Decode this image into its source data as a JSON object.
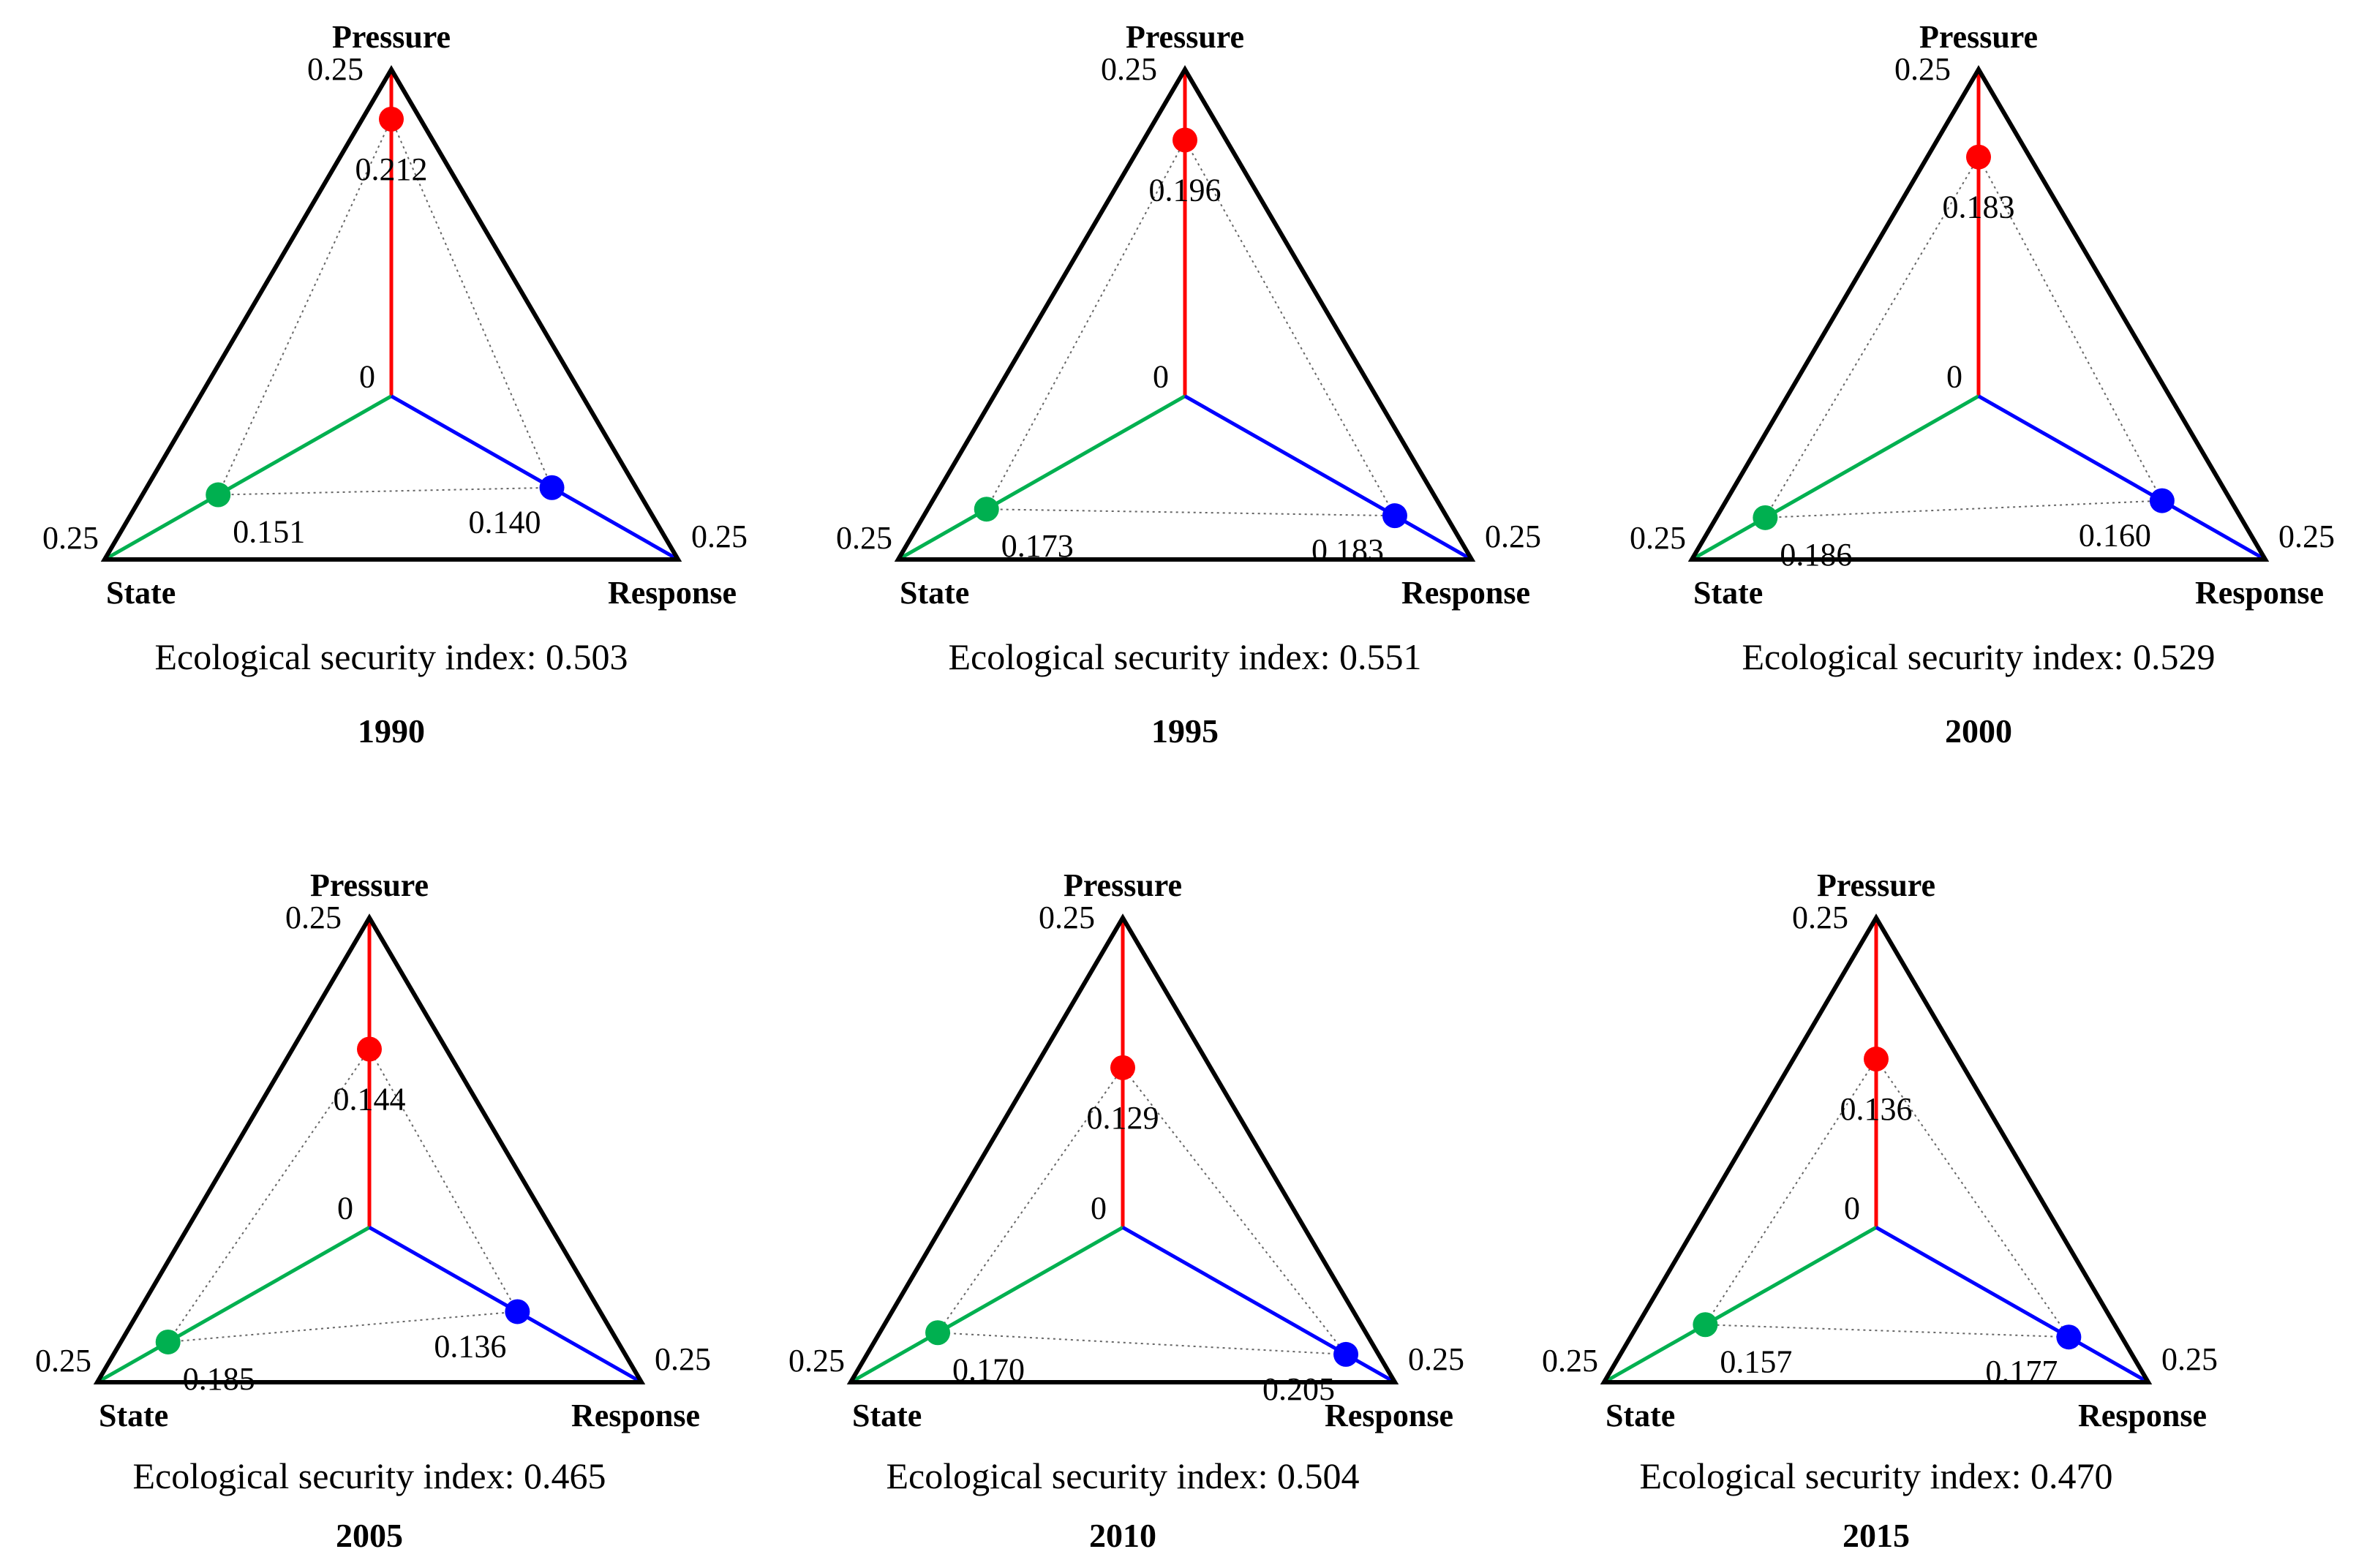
{
  "chart_data": [
    {
      "type": "radar-triangle",
      "year": "1990",
      "axes": [
        "Pressure",
        "State",
        "Response"
      ],
      "axis_max": "0.25",
      "axis_min": "0",
      "axis_max_value": 0.25,
      "values": {
        "pressure": 0.212,
        "state": 0.151,
        "response": 0.14
      },
      "value_labels": {
        "pressure": "0.212",
        "state": "0.151",
        "response": "0.140"
      },
      "index_text": "Ecological security index: 0.503",
      "colors": {
        "pressure": "#ff0000",
        "state": "#00b050",
        "response": "#0000ff",
        "frame": "#000000",
        "guide": "#666666"
      }
    },
    {
      "type": "radar-triangle",
      "year": "1995",
      "axes": [
        "Pressure",
        "State",
        "Response"
      ],
      "axis_max": "0.25",
      "axis_min": "0",
      "axis_max_value": 0.25,
      "values": {
        "pressure": 0.196,
        "state": 0.173,
        "response": 0.183
      },
      "value_labels": {
        "pressure": "0.196",
        "state": "0.173",
        "response": "0.183"
      },
      "index_text": "Ecological security index: 0.551",
      "colors": {
        "pressure": "#ff0000",
        "state": "#00b050",
        "response": "#0000ff",
        "frame": "#000000",
        "guide": "#666666"
      }
    },
    {
      "type": "radar-triangle",
      "year": "2000",
      "axes": [
        "Pressure",
        "State",
        "Response"
      ],
      "axis_max": "0.25",
      "axis_min": "0",
      "axis_max_value": 0.25,
      "values": {
        "pressure": 0.183,
        "state": 0.186,
        "response": 0.16
      },
      "value_labels": {
        "pressure": "0.183",
        "state": "0.186",
        "response": "0.160"
      },
      "index_text": "Ecological security index: 0.529",
      "colors": {
        "pressure": "#ff0000",
        "state": "#00b050",
        "response": "#0000ff",
        "frame": "#000000",
        "guide": "#666666"
      }
    },
    {
      "type": "radar-triangle",
      "year": "2005",
      "axes": [
        "Pressure",
        "State",
        "Response"
      ],
      "axis_max": "0.25",
      "axis_min": "0",
      "axis_max_value": 0.25,
      "values": {
        "pressure": 0.144,
        "state": 0.185,
        "response": 0.136
      },
      "value_labels": {
        "pressure": "0.144",
        "state": "0.185",
        "response": "0.136"
      },
      "index_text": "Ecological security index: 0.465",
      "colors": {
        "pressure": "#ff0000",
        "state": "#00b050",
        "response": "#0000ff",
        "frame": "#000000",
        "guide": "#666666"
      }
    },
    {
      "type": "radar-triangle",
      "year": "2010",
      "axes": [
        "Pressure",
        "State",
        "Response"
      ],
      "axis_max": "0.25",
      "axis_min": "0",
      "axis_max_value": 0.25,
      "values": {
        "pressure": 0.129,
        "state": 0.17,
        "response": 0.205
      },
      "value_labels": {
        "pressure": "0.129",
        "state": "0.170",
        "response": "0.205"
      },
      "index_text": "Ecological security index: 0.504",
      "colors": {
        "pressure": "#ff0000",
        "state": "#00b050",
        "response": "#0000ff",
        "frame": "#000000",
        "guide": "#666666"
      }
    },
    {
      "type": "radar-triangle",
      "year": "2015",
      "axes": [
        "Pressure",
        "State",
        "Response"
      ],
      "axis_max": "0.25",
      "axis_min": "0",
      "axis_max_value": 0.25,
      "values": {
        "pressure": 0.136,
        "state": 0.157,
        "response": 0.177
      },
      "value_labels": {
        "pressure": "0.136",
        "state": "0.157",
        "response": "0.177"
      },
      "index_text": "Ecological security index: 0.470",
      "colors": {
        "pressure": "#ff0000",
        "state": "#00b050",
        "response": "#0000ff",
        "frame": "#000000",
        "guide": "#666666"
      }
    }
  ]
}
